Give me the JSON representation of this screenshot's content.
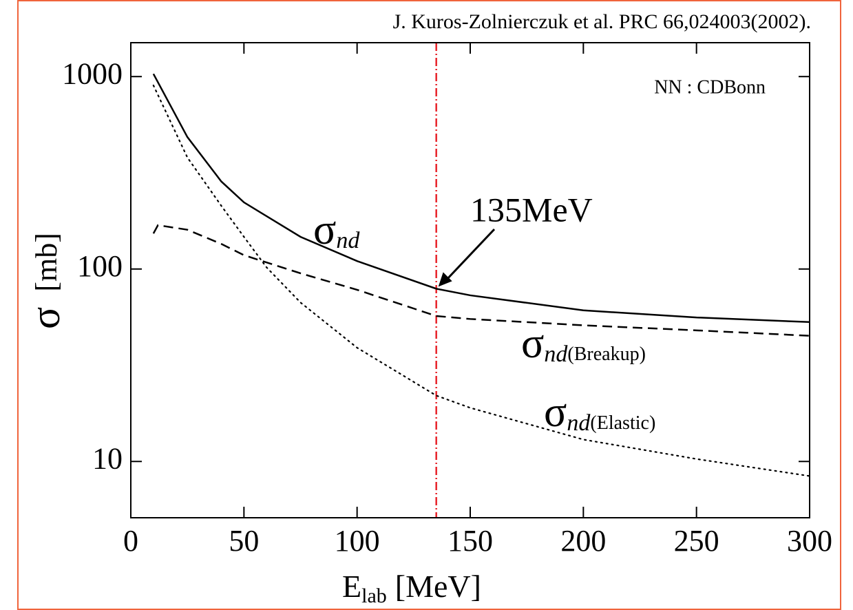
{
  "chart_data": {
    "type": "line",
    "citation": "J. Kuros-Zolnierczuk et al. PRC 66,024003(2002).",
    "note": "NN : CDBonn",
    "x_label": {
      "symbol": "E",
      "subscript": "lab",
      "unit": "[MeV]"
    },
    "y_label": {
      "symbol": "σ",
      "unit": "[mb]"
    },
    "xlim": [
      0,
      300
    ],
    "xticks": [
      0,
      50,
      100,
      150,
      200,
      250,
      300
    ],
    "ylim": [
      5.1,
      1500
    ],
    "yticks": [
      10,
      100,
      1000
    ],
    "log_y": true,
    "vline": {
      "x": 135,
      "color": "#e8232a"
    },
    "arrow_annotation": {
      "text": "135MeV",
      "x": 135,
      "y": 79
    },
    "series": [
      {
        "symbol": "σ",
        "sub": "nd",
        "dash": "solid",
        "color": "#000000",
        "x": [
          10,
          25,
          40,
          50,
          75,
          100,
          135,
          150,
          200,
          250,
          300
        ],
        "values": [
          1033,
          485,
          285,
          222,
          147,
          110,
          79,
          73,
          61,
          56,
          53
        ]
      },
      {
        "symbol": "σ",
        "sub": "nd",
        "qualifier": "(Breakup)",
        "dash": "dashed",
        "color": "#000000",
        "x": [
          10,
          12,
          25,
          40,
          50,
          75,
          100,
          135,
          150,
          200,
          250,
          300
        ],
        "values": [
          153,
          169,
          160,
          135,
          118,
          95,
          78,
          57,
          55,
          51,
          48,
          45
        ]
      },
      {
        "symbol": "σ",
        "sub": "nd",
        "qualifier": "(Elastic)",
        "dash": "dotted",
        "color": "#000000",
        "x": [
          10,
          25,
          40,
          50,
          60,
          75,
          100,
          135,
          150,
          200,
          250,
          300
        ],
        "values": [
          900,
          380,
          213,
          147,
          102,
          67,
          39,
          22,
          19,
          13,
          10.3,
          8.4
        ]
      }
    ]
  }
}
